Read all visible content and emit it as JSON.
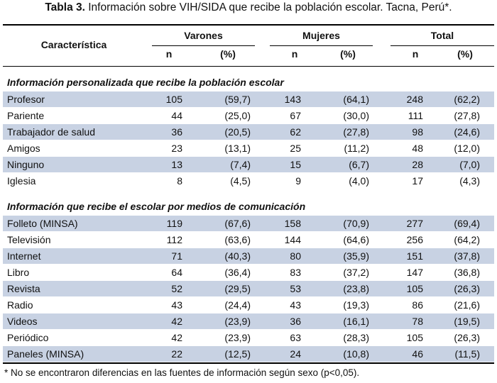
{
  "caption": {
    "label": "Tabla 3.",
    "text": "Información sobre VIH/SIDA que recibe la población escolar. Tacna, Perú*."
  },
  "header": {
    "characteristic": "Característica",
    "groups": [
      "Varones",
      "Mujeres",
      "Total"
    ],
    "n": "n",
    "pct": "(%)"
  },
  "sections": [
    {
      "title": "Información personalizada que recibe la población escolar",
      "rows": [
        {
          "label": "Profesor",
          "v_n": "105",
          "v_p": "(59,7)",
          "m_n": "143",
          "m_p": "(64,1)",
          "t_n": "248",
          "t_p": "(62,2)"
        },
        {
          "label": "Pariente",
          "v_n": "44",
          "v_p": "(25,0)",
          "m_n": "67",
          "m_p": "(30,0)",
          "t_n": "111",
          "t_p": "(27,8)"
        },
        {
          "label": "Trabajador de salud",
          "v_n": "36",
          "v_p": "(20,5)",
          "m_n": "62",
          "m_p": "(27,8)",
          "t_n": "98",
          "t_p": "(24,6)"
        },
        {
          "label": "Amigos",
          "v_n": "23",
          "v_p": "(13,1)",
          "m_n": "25",
          "m_p": "(11,2)",
          "t_n": "48",
          "t_p": "(12,0)"
        },
        {
          "label": "Ninguno",
          "v_n": "13",
          "v_p": "(7,4)",
          "m_n": "15",
          "m_p": "(6,7)",
          "t_n": "28",
          "t_p": "(7,0)"
        },
        {
          "label": "Iglesia",
          "v_n": "8",
          "v_p": "(4,5)",
          "m_n": "9",
          "m_p": "(4,0)",
          "t_n": "17",
          "t_p": "(4,3)"
        }
      ]
    },
    {
      "title": "Información que recibe el escolar por medios de comunicación",
      "rows": [
        {
          "label": "Folleto (MINSA)",
          "v_n": "119",
          "v_p": "(67,6)",
          "m_n": "158",
          "m_p": "(70,9)",
          "t_n": "277",
          "t_p": "(69,4)"
        },
        {
          "label": "Televisión",
          "v_n": "112",
          "v_p": "(63,6)",
          "m_n": "144",
          "m_p": "(64,6)",
          "t_n": "256",
          "t_p": "(64,2)"
        },
        {
          "label": "Internet",
          "v_n": "71",
          "v_p": "(40,3)",
          "m_n": "80",
          "m_p": "(35,9)",
          "t_n": "151",
          "t_p": "(37,8)"
        },
        {
          "label": "Libro",
          "v_n": "64",
          "v_p": "(36,4)",
          "m_n": "83",
          "m_p": "(37,2)",
          "t_n": "147",
          "t_p": "(36,8)"
        },
        {
          "label": "Revista",
          "v_n": "52",
          "v_p": "(29,5)",
          "m_n": "53",
          "m_p": "(23,8)",
          "t_n": "105",
          "t_p": "(26,3)"
        },
        {
          "label": "Radio",
          "v_n": "43",
          "v_p": "(24,4)",
          "m_n": "43",
          "m_p": "(19,3)",
          "t_n": "86",
          "t_p": "(21,6)"
        },
        {
          "label": "Videos",
          "v_n": "42",
          "v_p": "(23,9)",
          "m_n": "36",
          "m_p": "(16,1)",
          "t_n": "78",
          "t_p": "(19,5)"
        },
        {
          "label": "Periódico",
          "v_n": "42",
          "v_p": "(23,9)",
          "m_n": "63",
          "m_p": "(28,3)",
          "t_n": "105",
          "t_p": "(26,3)"
        },
        {
          "label": "Paneles (MINSA)",
          "v_n": "22",
          "v_p": "(12,5)",
          "m_n": "24",
          "m_p": "(10,8)",
          "t_n": "46",
          "t_p": "(11,5)"
        }
      ]
    }
  ],
  "footnote": "* No se encontraron diferencias en las fuentes de información según sexo (p<0,05).",
  "colors": {
    "shade": "#c8d2e3",
    "rule": "#000000"
  }
}
